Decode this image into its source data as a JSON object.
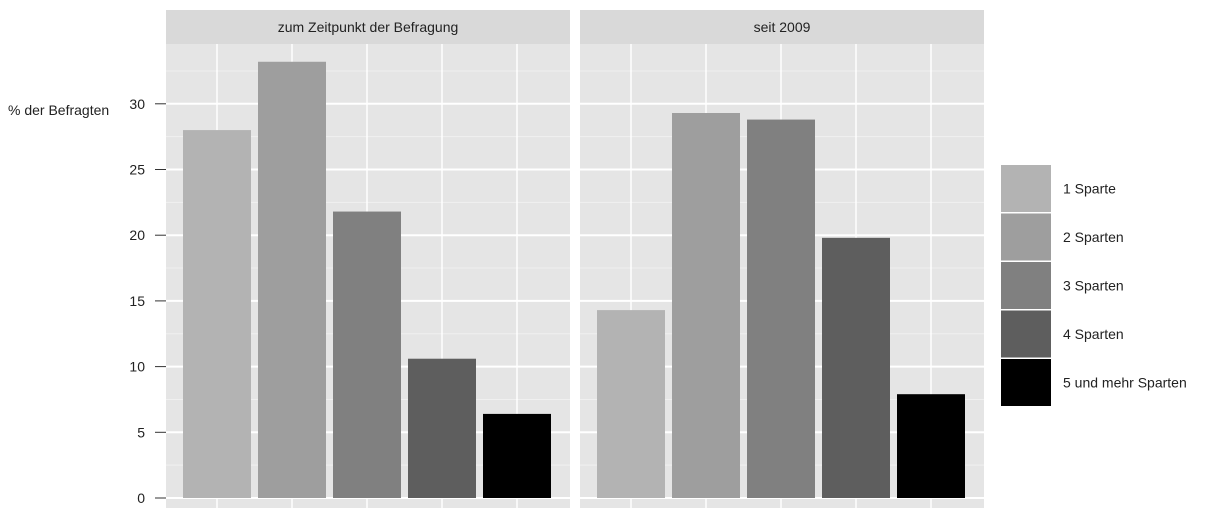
{
  "chart_data": {
    "type": "bar",
    "ylabel": "% der Befragten",
    "ylim": [
      0,
      35
    ],
    "yticks": [
      0,
      5,
      10,
      15,
      20,
      25,
      30
    ],
    "grid": true,
    "legend_position": "right",
    "categories": [
      "1 Sparte",
      "2 Sparten",
      "3 Sparten",
      "4 Sparten",
      "5 und mehr Sparten"
    ],
    "colors": [
      "#b3b3b3",
      "#9e9e9e",
      "#808080",
      "#5e5e5e",
      "#000000"
    ],
    "panels": [
      {
        "title": "zum Zeitpunkt der Befragung",
        "values": [
          28.0,
          33.2,
          21.8,
          10.6,
          6.4
        ]
      },
      {
        "title": "seit 2009",
        "values": [
          14.3,
          29.3,
          28.8,
          19.8,
          7.9
        ]
      }
    ]
  }
}
